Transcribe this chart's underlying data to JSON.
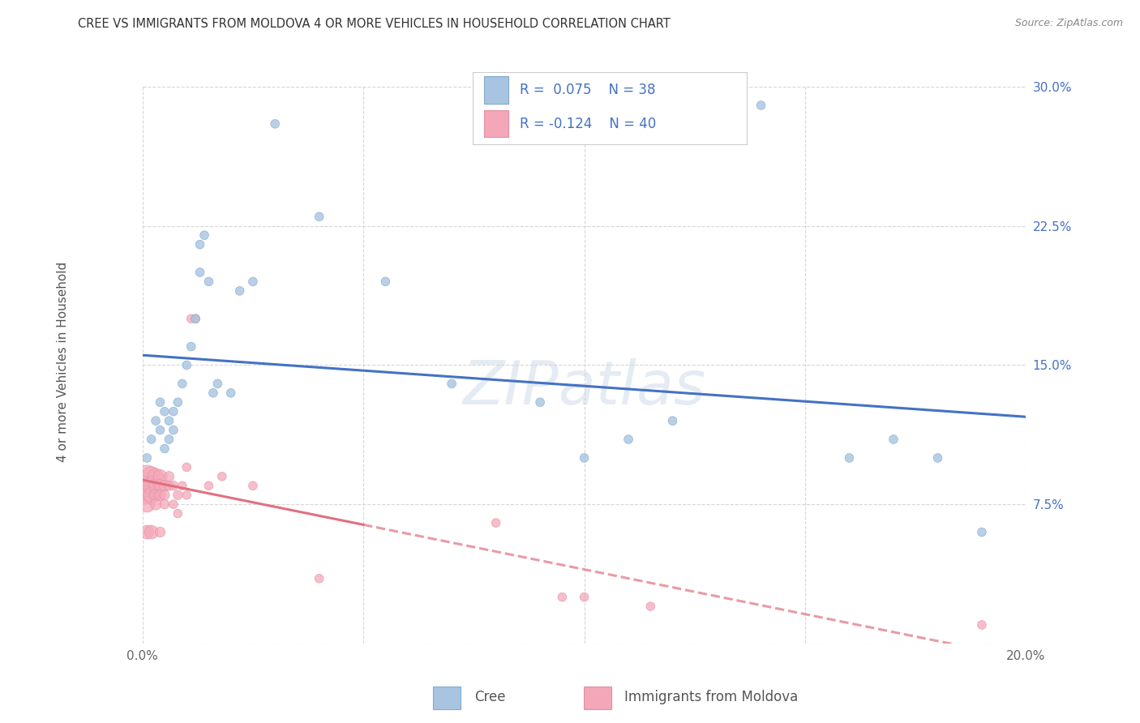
{
  "title": "CREE VS IMMIGRANTS FROM MOLDOVA 4 OR MORE VEHICLES IN HOUSEHOLD CORRELATION CHART",
  "source": "Source: ZipAtlas.com",
  "ylabel": "4 or more Vehicles in Household",
  "xlim": [
    0.0,
    0.2
  ],
  "ylim": [
    0.0,
    0.3
  ],
  "cree_color": "#a8c4e0",
  "moldova_color": "#f4a7b9",
  "cree_line_color": "#4472c4",
  "moldova_line_color": "#e07080",
  "cree_R": 0.075,
  "cree_N": 38,
  "moldova_R": -0.124,
  "moldova_N": 40,
  "watermark_text": "ZIPatlas",
  "cree_scatter_x": [
    0.001,
    0.002,
    0.003,
    0.004,
    0.004,
    0.005,
    0.005,
    0.006,
    0.006,
    0.007,
    0.007,
    0.008,
    0.009,
    0.01,
    0.011,
    0.012,
    0.013,
    0.013,
    0.014,
    0.015,
    0.016,
    0.017,
    0.02,
    0.022,
    0.025,
    0.03,
    0.04,
    0.055,
    0.07,
    0.09,
    0.1,
    0.11,
    0.12,
    0.14,
    0.16,
    0.17,
    0.18,
    0.19
  ],
  "cree_scatter_y": [
    0.1,
    0.11,
    0.12,
    0.13,
    0.115,
    0.125,
    0.105,
    0.12,
    0.11,
    0.125,
    0.115,
    0.13,
    0.14,
    0.15,
    0.16,
    0.175,
    0.2,
    0.215,
    0.22,
    0.195,
    0.135,
    0.14,
    0.135,
    0.19,
    0.195,
    0.28,
    0.23,
    0.195,
    0.14,
    0.13,
    0.1,
    0.11,
    0.12,
    0.29,
    0.1,
    0.11,
    0.1,
    0.06
  ],
  "cree_sizes": [
    60,
    60,
    60,
    60,
    60,
    60,
    60,
    60,
    60,
    60,
    60,
    60,
    60,
    60,
    60,
    60,
    60,
    60,
    60,
    60,
    60,
    60,
    60,
    60,
    60,
    60,
    60,
    60,
    60,
    60,
    60,
    60,
    60,
    60,
    60,
    60,
    60,
    60
  ],
  "moldova_scatter_x": [
    0.001,
    0.001,
    0.001,
    0.001,
    0.001,
    0.002,
    0.002,
    0.002,
    0.002,
    0.003,
    0.003,
    0.003,
    0.003,
    0.004,
    0.004,
    0.004,
    0.004,
    0.005,
    0.005,
    0.005,
    0.006,
    0.006,
    0.007,
    0.007,
    0.008,
    0.008,
    0.009,
    0.01,
    0.01,
    0.011,
    0.012,
    0.015,
    0.018,
    0.025,
    0.04,
    0.08,
    0.095,
    0.1,
    0.115,
    0.19
  ],
  "moldova_scatter_y": [
    0.09,
    0.085,
    0.08,
    0.075,
    0.06,
    0.09,
    0.085,
    0.08,
    0.06,
    0.09,
    0.085,
    0.08,
    0.075,
    0.09,
    0.085,
    0.08,
    0.06,
    0.085,
    0.08,
    0.075,
    0.09,
    0.085,
    0.085,
    0.075,
    0.08,
    0.07,
    0.085,
    0.095,
    0.08,
    0.175,
    0.175,
    0.085,
    0.09,
    0.085,
    0.035,
    0.065,
    0.025,
    0.025,
    0.02,
    0.01
  ],
  "moldova_sizes": [
    400,
    300,
    250,
    200,
    150,
    300,
    250,
    200,
    150,
    200,
    150,
    120,
    100,
    150,
    120,
    100,
    80,
    100,
    80,
    70,
    80,
    70,
    70,
    60,
    70,
    60,
    60,
    60,
    60,
    60,
    60,
    60,
    60,
    60,
    60,
    60,
    60,
    60,
    60,
    60
  ]
}
